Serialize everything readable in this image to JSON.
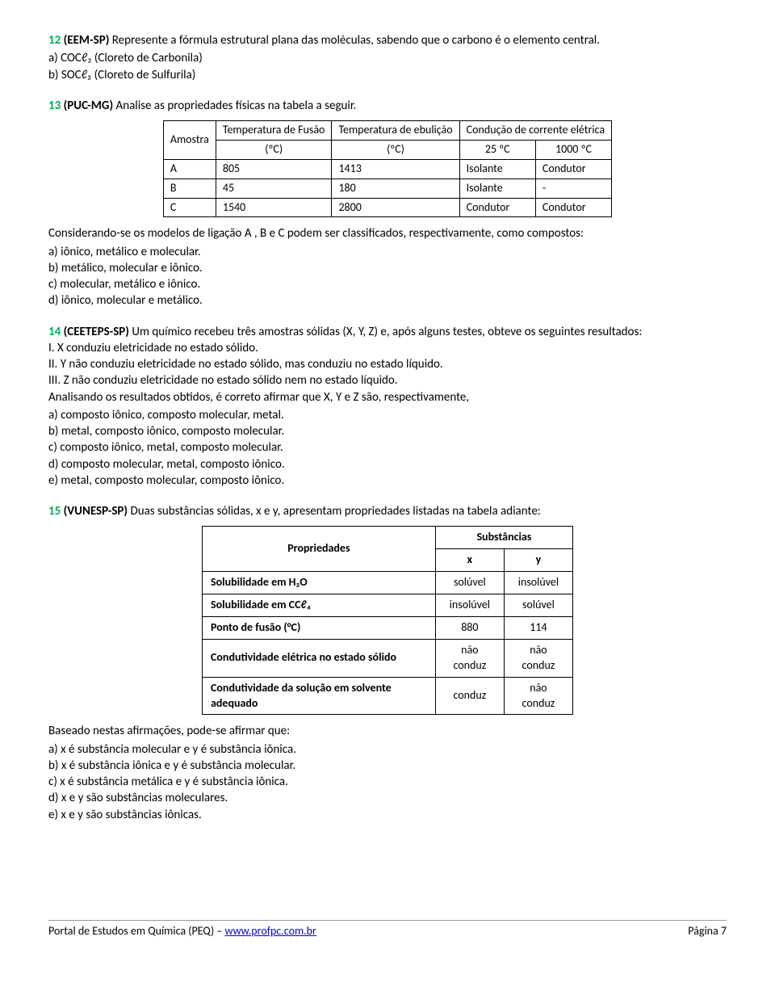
{
  "q12": {
    "num": "12",
    "source": "(EEM-SP)",
    "text": "Represente a fórmula estrutural plana das moléculas, sabendo que o carbono é o elemento central.",
    "a": "a) COCℓ₂ (Cloreto de Carbonila)",
    "b": "b) SOCℓ₂ (Cloreto de Sulfurila)"
  },
  "q13": {
    "num": "13",
    "source": "(PUC-MG)",
    "text": "Analise as propriedades físicas na tabela a seguir.",
    "table": {
      "h_amostra": "Amostra",
      "h_tfusao": "Temperatura de Fusão",
      "h_tebul": "Temperatura de ebulição",
      "h_cond": "Condução de corrente elétrica",
      "u1": "(ºC)",
      "u2": "(ºC)",
      "u3": "25 ºC",
      "u4": "1000 ºC",
      "r1": [
        "A",
        "805",
        "1413",
        "Isolante",
        "Condutor"
      ],
      "r2": [
        "B",
        "45",
        "180",
        "Isolante",
        "-"
      ],
      "r3": [
        "C",
        "1540",
        "2800",
        "Condutor",
        "Condutor"
      ]
    },
    "after": "Considerando-se os modelos de ligação A , B e C podem ser classificados, respectivamente, como compostos:",
    "opts": {
      "a": "a) iônico, metálico e molecular.",
      "b": "b) metálico, molecular e iônico.",
      "c": "c) molecular, metálico e iônico.",
      "d": "d) iônico, molecular e metálico."
    }
  },
  "q14": {
    "num": "14",
    "source": "(CEETEPS-SP)",
    "text": "Um químico recebeu três amostras sólidas (X, Y, Z) e, após alguns testes, obteve os seguintes resultados:",
    "I": "I. X conduziu eletricidade no estado sólido.",
    "II": "II. Y não conduziu eletricidade no estado sólido, mas conduziu no estado líquido.",
    "III": "III. Z não conduziu eletricidade no estado sólido nem no estado líquido.",
    "lead": "Analisando os resultados obtidos, é correto afirmar que X, Y e Z são, respectivamente,",
    "opts": {
      "a": "a) composto iônico, composto molecular, metal.",
      "b": "b) metal, composto iônico, composto molecular.",
      "c": "c) composto iônico, metal, composto molecular.",
      "d": "d) composto molecular, metal, composto iônico.",
      "e": "e) metal, composto molecular, composto iônico."
    }
  },
  "q15": {
    "num": "15",
    "source": "(VUNESP-SP)",
    "text": "Duas substâncias sólidas, x e y, apresentam propriedades listadas na tabela adiante:",
    "table": {
      "h_prop": "Propriedades",
      "h_subs": "Substâncias",
      "cx": "x",
      "cy": "y",
      "rows": [
        {
          "p": "Solubilidade em H₂O",
          "x": "solúvel",
          "y": "insolúvel"
        },
        {
          "p": "Solubilidade em CCℓ₄",
          "x": "insolúvel",
          "y": "solúvel"
        },
        {
          "p": "Ponto de fusão (°C)",
          "x": "880",
          "y": "114"
        },
        {
          "p": "Condutividade elétrica no estado sólido",
          "x": "não conduz",
          "y": "não conduz"
        },
        {
          "p": "Condutividade da solução em solvente adequado",
          "x": "conduz",
          "y": "não conduz"
        }
      ]
    },
    "after": "Baseado nestas afirmações, pode-se afirmar que:",
    "opts": {
      "a": "a) x é substância molecular e y é substância iônica.",
      "b": "b) x é substância iônica e y é substância molecular.",
      "c": "c) x é substância metálica e y é substância iônica.",
      "d": "d) x e y são substâncias moleculares.",
      "e": "e) x e y são substâncias iônicas."
    }
  },
  "footer": {
    "left_pre": "Portal de Estudos em Química (PEQ) – ",
    "link": "www.profpc.com.br",
    "right": "Página 7"
  }
}
